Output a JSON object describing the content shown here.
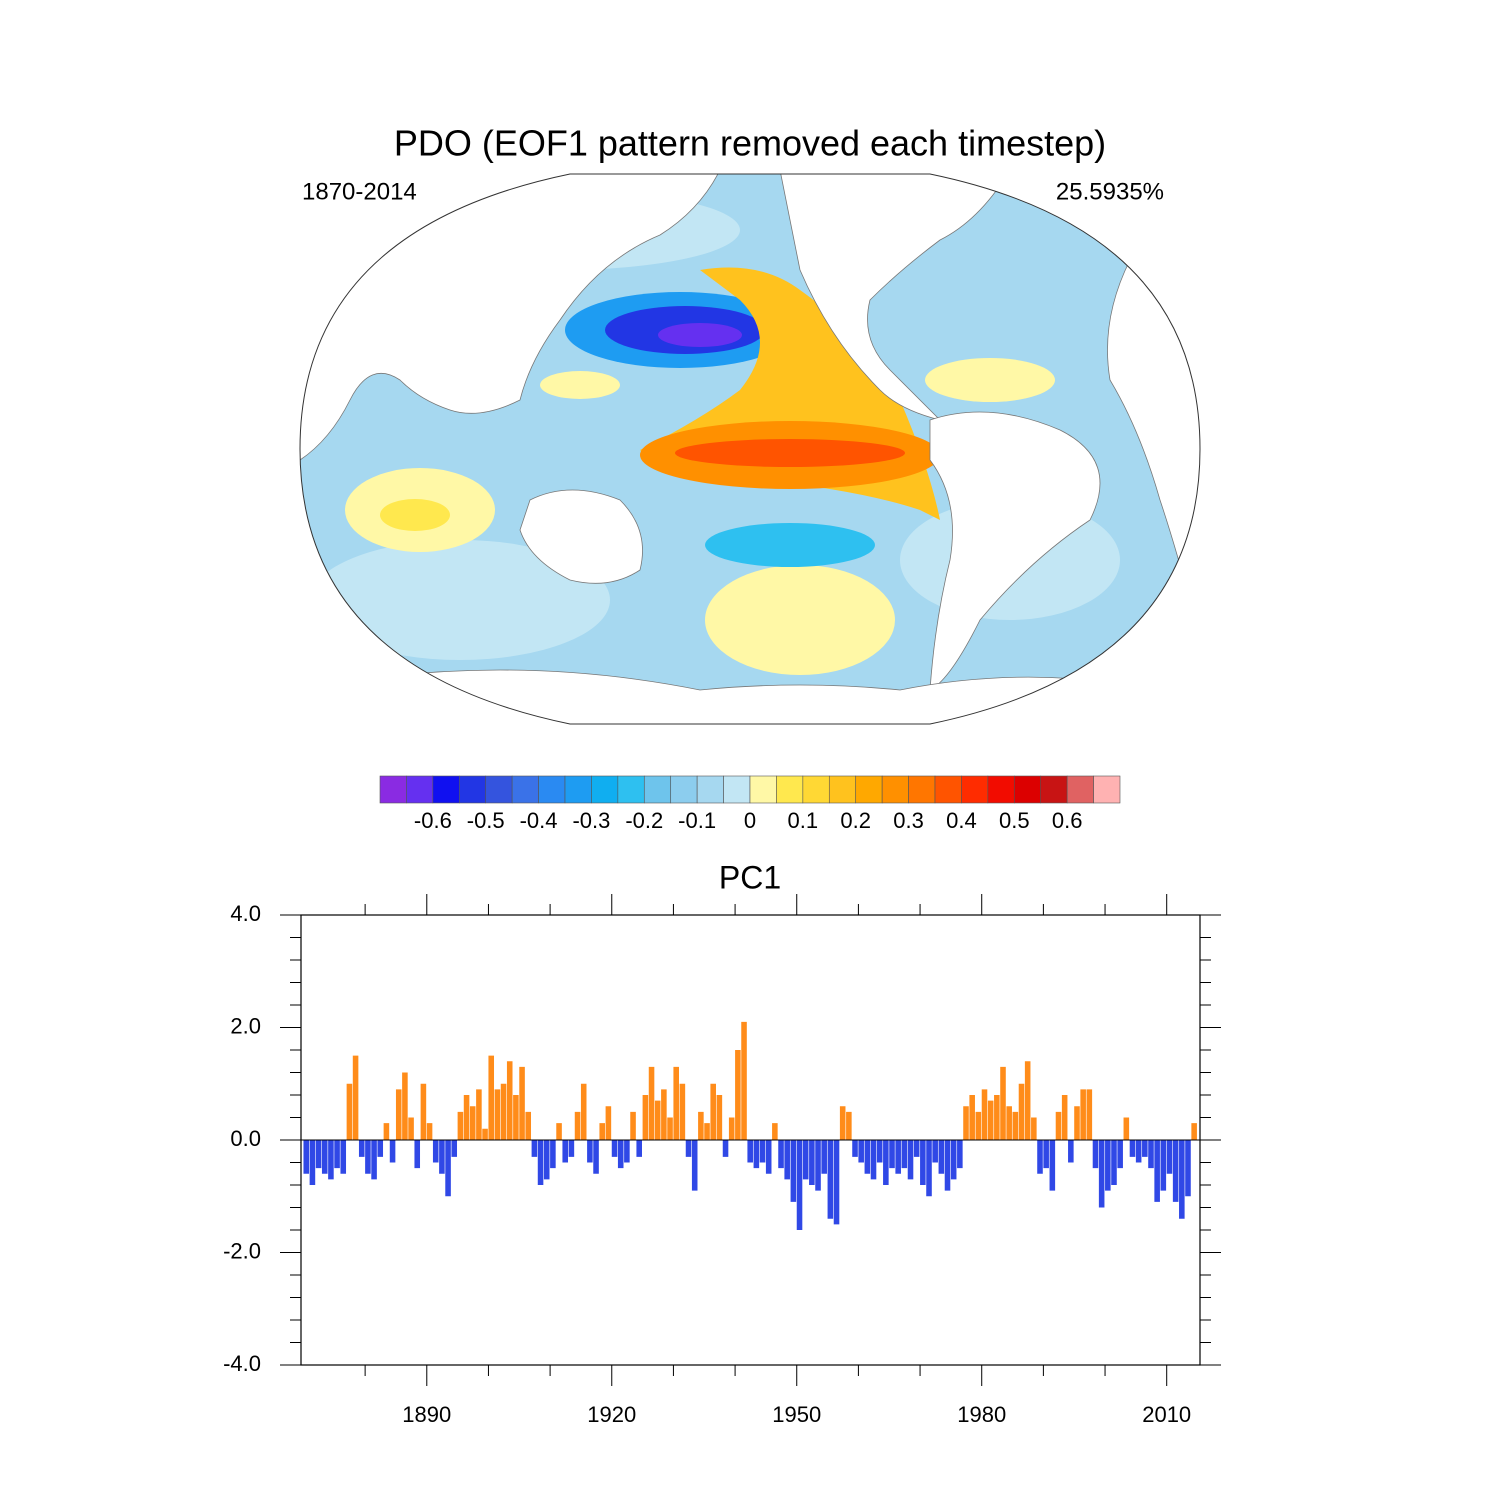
{
  "chart_data": [
    {
      "type": "contour-map",
      "title": "PDO (EOF1 pattern removed each timestep)",
      "left_string": "1870-2014",
      "right_string": "25.5935%",
      "colorbar": {
        "lim": [
          -0.7,
          0.7
        ],
        "ticks": [
          -0.6,
          -0.5,
          -0.4,
          -0.3,
          -0.2,
          -0.1,
          0,
          0.1,
          0.2,
          0.3,
          0.4,
          0.5,
          0.6
        ],
        "colors": [
          "#8a2be2",
          "#6530f0",
          "#1010f0",
          "#2236e4",
          "#3454de",
          "#3a72e8",
          "#2a8af2",
          "#1e9cf2",
          "#10aef0",
          "#2ec0f0",
          "#6ec4ec",
          "#8ccdee",
          "#a6d8f0",
          "#c2e6f4",
          "#fff8a6",
          "#ffe84e",
          "#ffd834",
          "#ffc21e",
          "#ffa800",
          "#ff9000",
          "#ff7600",
          "#ff5400",
          "#ff2c00",
          "#f20c00",
          "#dc0000",
          "#c81414",
          "#e06262",
          "#ffb2b2"
        ]
      }
    },
    {
      "type": "bar",
      "title": "PC1",
      "above_color": "#ff8c1a",
      "below_color": "#3048e6",
      "xlim": [
        1869.6,
        2015.4
      ],
      "xticks": [
        1890,
        1920,
        1950,
        1980,
        2010
      ],
      "xminorticks": [
        1880,
        1900,
        1910,
        1930,
        1940,
        1960,
        1970,
        1990,
        2000
      ],
      "ylim": [
        -4,
        4
      ],
      "yticks": [
        {
          "value": -4,
          "label": "-4.0"
        },
        {
          "value": -2,
          "label": "-2.0"
        },
        {
          "value": 0,
          "label": "0.0"
        },
        {
          "value": 2,
          "label": "2.0"
        },
        {
          "value": 4,
          "label": "4.0"
        }
      ],
      "yminorticks": [
        -3.6,
        -3.2,
        -2.8,
        -2.4,
        -1.6,
        -1.2,
        -0.8,
        -0.4,
        0.4,
        0.8,
        1.2,
        1.6,
        2.4,
        2.8,
        3.2,
        3.6
      ],
      "x": [
        1870,
        1871,
        1872,
        1873,
        1874,
        1875,
        1876,
        1877,
        1878,
        1879,
        1880,
        1881,
        1882,
        1883,
        1884,
        1885,
        1886,
        1887,
        1888,
        1889,
        1890,
        1891,
        1892,
        1893,
        1894,
        1895,
        1896,
        1897,
        1898,
        1899,
        1900,
        1901,
        1902,
        1903,
        1904,
        1905,
        1906,
        1907,
        1908,
        1909,
        1910,
        1911,
        1912,
        1913,
        1914,
        1915,
        1916,
        1917,
        1918,
        1919,
        1920,
        1921,
        1922,
        1923,
        1924,
        1925,
        1926,
        1927,
        1928,
        1929,
        1930,
        1931,
        1932,
        1933,
        1934,
        1935,
        1936,
        1937,
        1938,
        1939,
        1940,
        1941,
        1942,
        1943,
        1944,
        1945,
        1946,
        1947,
        1948,
        1949,
        1950,
        1951,
        1952,
        1953,
        1954,
        1955,
        1956,
        1957,
        1958,
        1959,
        1960,
        1961,
        1962,
        1963,
        1964,
        1965,
        1966,
        1967,
        1968,
        1969,
        1970,
        1971,
        1972,
        1973,
        1974,
        1975,
        1976,
        1977,
        1978,
        1979,
        1980,
        1981,
        1982,
        1983,
        1984,
        1985,
        1986,
        1987,
        1988,
        1989,
        1990,
        1991,
        1992,
        1993,
        1994,
        1995,
        1996,
        1997,
        1998,
        1999,
        2000,
        2001,
        2002,
        2003,
        2004,
        2005,
        2006,
        2007,
        2008,
        2009,
        2010,
        2011,
        2012,
        2013,
        2014
      ],
      "values": [
        -0.6,
        -0.8,
        -0.5,
        -0.6,
        -0.7,
        -0.5,
        -0.6,
        1.0,
        1.5,
        -0.3,
        -0.6,
        -0.7,
        -0.3,
        0.3,
        -0.4,
        0.9,
        1.2,
        0.4,
        -0.5,
        1.0,
        0.3,
        -0.4,
        -0.6,
        -1.0,
        -0.3,
        0.5,
        0.8,
        0.6,
        0.9,
        0.2,
        1.5,
        0.9,
        1.0,
        1.4,
        0.8,
        1.3,
        0.5,
        -0.3,
        -0.8,
        -0.7,
        -0.5,
        0.3,
        -0.4,
        -0.3,
        0.5,
        1.0,
        -0.4,
        -0.6,
        0.3,
        0.6,
        -0.3,
        -0.5,
        -0.4,
        0.5,
        -0.3,
        0.8,
        1.3,
        0.7,
        0.9,
        0.4,
        1.3,
        1.0,
        -0.3,
        -0.9,
        0.5,
        0.3,
        1.0,
        0.8,
        -0.3,
        0.4,
        1.6,
        2.1,
        -0.4,
        -0.5,
        -0.4,
        -0.6,
        0.3,
        -0.5,
        -0.7,
        -1.1,
        -1.6,
        -0.7,
        -0.8,
        -0.9,
        -0.6,
        -1.4,
        -1.5,
        0.6,
        0.5,
        -0.3,
        -0.4,
        -0.6,
        -0.7,
        -0.4,
        -0.8,
        -0.5,
        -0.6,
        -0.5,
        -0.7,
        -0.3,
        -0.8,
        -1.0,
        -0.4,
        -0.6,
        -0.9,
        -0.7,
        -0.5,
        0.6,
        0.8,
        0.5,
        0.9,
        0.7,
        0.8,
        1.3,
        0.6,
        0.5,
        1.0,
        1.4,
        0.4,
        -0.6,
        -0.5,
        -0.9,
        0.5,
        0.8,
        -0.4,
        0.6,
        0.9,
        0.9,
        -0.5,
        -1.2,
        -0.9,
        -0.8,
        -0.5,
        0.4,
        -0.3,
        -0.4,
        -0.3,
        -0.5,
        -1.1,
        -0.9,
        -0.6,
        -1.1,
        -1.4,
        -1.0,
        0.3
      ]
    }
  ]
}
